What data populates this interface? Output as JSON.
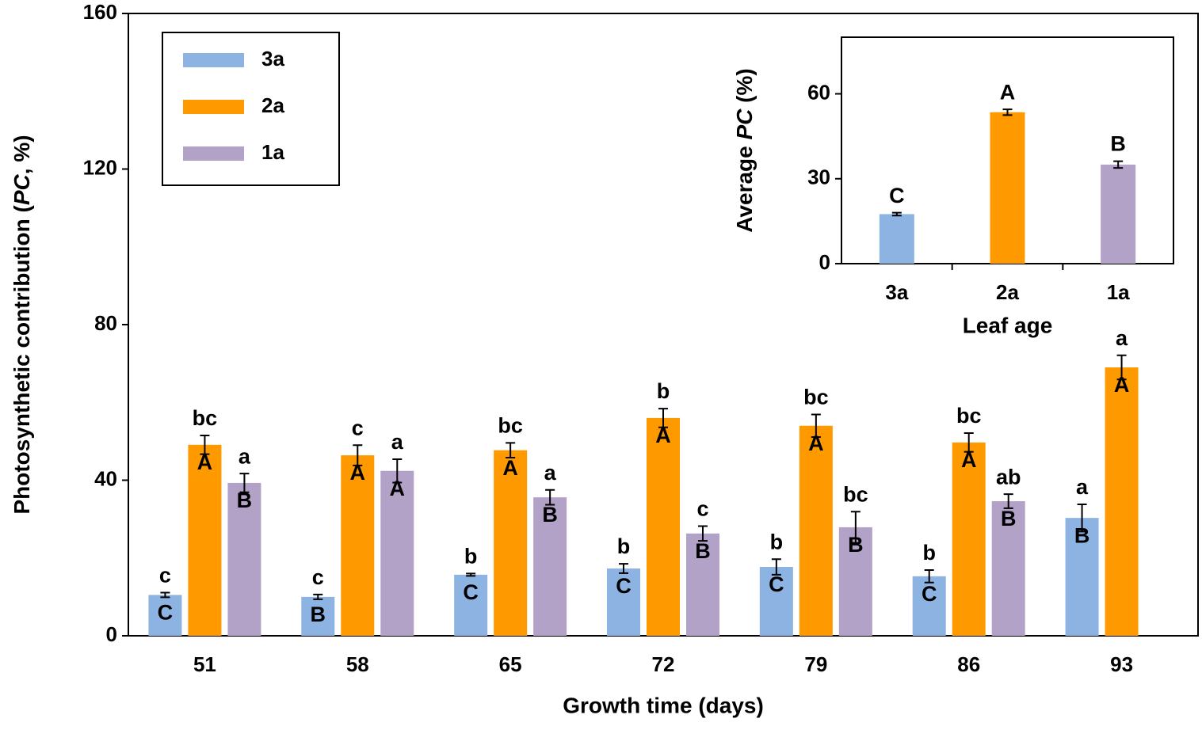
{
  "chart_data": [
    {
      "type": "bar",
      "xlabel": "Growth time (days)",
      "ylabel": [
        "Photosynthetic  contribution (",
        "PC",
        ",  %)"
      ],
      "categories": [
        "51",
        "58",
        "65",
        "72",
        "79",
        "86",
        "93"
      ],
      "ylim": [
        0,
        160
      ],
      "yticks": [
        0,
        40,
        80,
        120,
        160
      ],
      "legend": "upper left",
      "series": [
        {
          "name": "3a",
          "color": "#8db3e2",
          "values": [
            10.5,
            10,
            15.7,
            17.3,
            17.7,
            15.3,
            30.3
          ],
          "errors": [
            0.6,
            0.6,
            0.3,
            1.2,
            2,
            1.6,
            3.5
          ],
          "letters_above": [
            "c",
            "c",
            "b",
            "b",
            "b",
            "b",
            "a"
          ],
          "letters_inside": [
            "C",
            "B",
            "C",
            "C",
            "C",
            "C",
            "B"
          ]
        },
        {
          "name": "2a",
          "color": "#ff9900",
          "values": [
            49.1,
            46.4,
            47.7,
            56,
            54,
            49.7,
            69
          ],
          "errors": [
            2.4,
            2.6,
            1.9,
            2.4,
            2.9,
            2.4,
            3.1
          ],
          "letters_above": [
            "bc",
            "c",
            "bc",
            "b",
            "bc",
            "bc",
            "a"
          ],
          "letters_inside": [
            "A",
            "A",
            "A",
            "A",
            "A",
            "A",
            "A"
          ]
        },
        {
          "name": "1a",
          "color": "#b3a2c7",
          "values": [
            39.3,
            42.4,
            35.6,
            26.3,
            27.9,
            34.6,
            null
          ],
          "errors": [
            2.4,
            3,
            1.9,
            1.9,
            4,
            1.8,
            null
          ],
          "letters_above": [
            "a",
            "a",
            "a",
            "c",
            "bc",
            "ab",
            null
          ],
          "letters_inside": [
            "B",
            "A",
            "B",
            "B",
            "B",
            "B",
            null
          ]
        }
      ]
    },
    {
      "type": "bar",
      "xlabel": "Leaf age",
      "ylabel": [
        "Average ",
        "PC",
        "  (%)"
      ],
      "categories": [
        "3a",
        "2a",
        "1a"
      ],
      "ylim": [
        0,
        80
      ],
      "yticks": [
        0,
        30,
        60
      ],
      "series": [
        {
          "colors": [
            "#8db3e2",
            "#ff9900",
            "#b3a2c7"
          ],
          "values": [
            17.5,
            53.5,
            35
          ],
          "errors": [
            0.5,
            1,
            1.2
          ],
          "letters_above": [
            "C",
            "A",
            "B"
          ]
        }
      ]
    }
  ]
}
